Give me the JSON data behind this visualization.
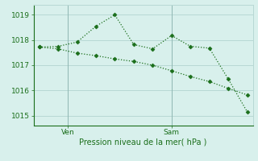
{
  "line1_x": [
    0,
    1,
    2,
    3,
    4,
    5,
    6,
    7,
    8,
    9,
    10,
    11
  ],
  "line1_y": [
    1017.72,
    1017.75,
    1017.92,
    1018.55,
    1019.0,
    1017.82,
    1017.65,
    1018.18,
    1017.75,
    1017.68,
    1016.45,
    1015.15
  ],
  "line2_x": [
    0,
    1,
    2,
    3,
    4,
    5,
    6,
    7,
    8,
    9,
    10,
    11
  ],
  "line2_y": [
    1017.72,
    1017.65,
    1017.48,
    1017.38,
    1017.25,
    1017.15,
    1017.0,
    1016.78,
    1016.55,
    1016.35,
    1016.08,
    1015.82
  ],
  "ven_x": 1.5,
  "sam_x": 7.0,
  "yticks": [
    1015,
    1016,
    1017,
    1018,
    1019
  ],
  "ylim": [
    1014.6,
    1019.4
  ],
  "xlim": [
    -0.3,
    11.3
  ],
  "line_color": "#1a6e1a",
  "bg_color": "#d8f0ec",
  "grid_color": "#b8d8d4",
  "vline_color": "#90b8b4",
  "xlabel": "Pression niveau de la mer( hPa )",
  "xlabel_color": "#1a6e1a",
  "tick_color": "#1a6e1a",
  "markersize": 2.5,
  "linewidth": 0.9
}
